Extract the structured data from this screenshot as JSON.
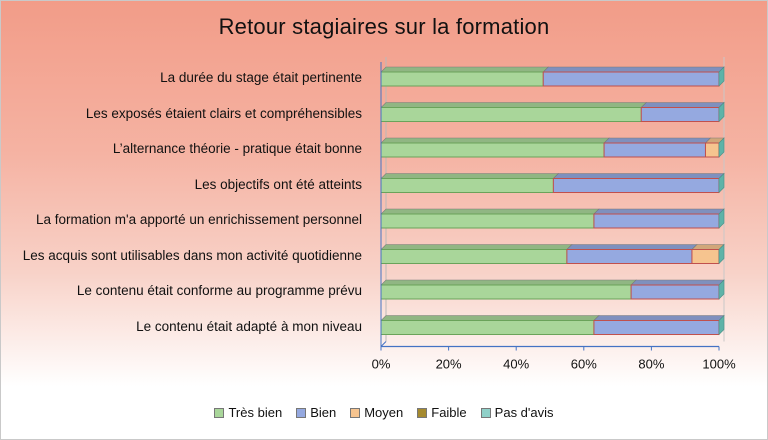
{
  "chart_data": {
    "type": "bar",
    "orientation": "horizontal",
    "stacked": "percent",
    "title": "Retour stagiaires sur la formation",
    "categories": [
      "La durée du stage était pertinente",
      "Les exposés étaient clairs et compréhensibles",
      "L’alternance théorie - pratique était bonne",
      "Les objectifs ont été atteints",
      "La formation m'a apporté un enrichissement personnel",
      "Les acquis sont utilisables dans mon activité quotidienne",
      "Le contenu était conforme au programme prévu",
      "Le contenu était adapté à mon niveau"
    ],
    "series": [
      {
        "name": "Très bien",
        "color": "#a9d69a",
        "values": [
          48,
          77,
          66,
          51,
          63,
          55,
          74,
          63
        ]
      },
      {
        "name": "Bien",
        "color": "#95a9e0",
        "values": [
          52,
          23,
          30,
          49,
          37,
          37,
          26,
          37
        ]
      },
      {
        "name": "Moyen",
        "color": "#f6c48f",
        "values": [
          0,
          0,
          4,
          0,
          0,
          8,
          0,
          0
        ]
      },
      {
        "name": "Faible",
        "color": "#a58a2f",
        "values": [
          0,
          0,
          0,
          0,
          0,
          0,
          0,
          0
        ]
      },
      {
        "name": "Pas d'avis",
        "color": "#8fd0c8",
        "values": [
          0,
          0,
          0,
          0,
          0,
          0,
          0,
          0
        ]
      }
    ],
    "xlim": [
      0,
      100
    ],
    "x_ticks": [
      "0%",
      "20%",
      "40%",
      "60%",
      "80%",
      "100%"
    ],
    "legend_position": "bottom",
    "grid": false
  }
}
